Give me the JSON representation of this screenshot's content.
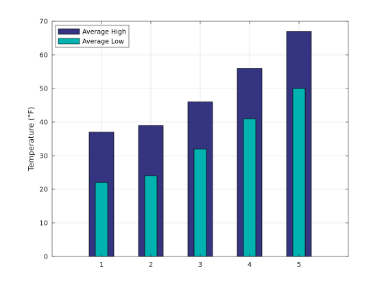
{
  "chart_data": {
    "type": "bar",
    "categories": [
      "1",
      "2",
      "3",
      "4",
      "5"
    ],
    "series": [
      {
        "name": "Average High",
        "values": [
          37,
          39,
          46,
          56,
          67
        ],
        "color": "#343480"
      },
      {
        "name": "Average Low",
        "values": [
          22,
          24,
          32,
          41,
          50
        ],
        "color": "#00b2b0"
      }
    ],
    "ylabel": "Temperature (°F)",
    "xlim": [
      0,
      6
    ],
    "ylim": [
      0,
      70
    ],
    "yticks": [
      0,
      10,
      20,
      30,
      40,
      50,
      60,
      70
    ],
    "grid": true,
    "legend": "top-left",
    "grid_color": "#dcdcdc",
    "axis_color": "#262626"
  }
}
